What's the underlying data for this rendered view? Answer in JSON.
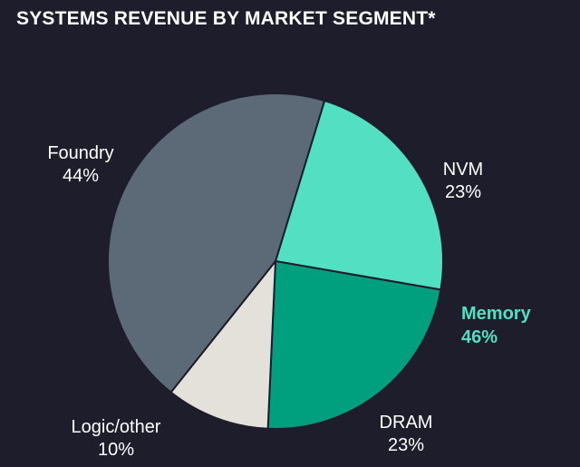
{
  "chart_data": {
    "type": "pie",
    "title": "SYSTEMS REVENUE BY MARKET SEGMENT*",
    "slices": [
      {
        "label": "Foundry",
        "value": 44,
        "pct": "44%",
        "color": "#5c6a78"
      },
      {
        "label": "NVM",
        "value": 23,
        "pct": "23%",
        "color": "#52dfc2"
      },
      {
        "label": "DRAM",
        "value": 23,
        "pct": "23%",
        "color": "#009f7e"
      },
      {
        "label": "Logic/other",
        "value": 10,
        "pct": "10%",
        "color": "#e4e1da"
      }
    ],
    "annotation": {
      "label": "Memory",
      "pct": "46%",
      "color": "#52dfc2"
    },
    "background": "#1d1d2b"
  }
}
